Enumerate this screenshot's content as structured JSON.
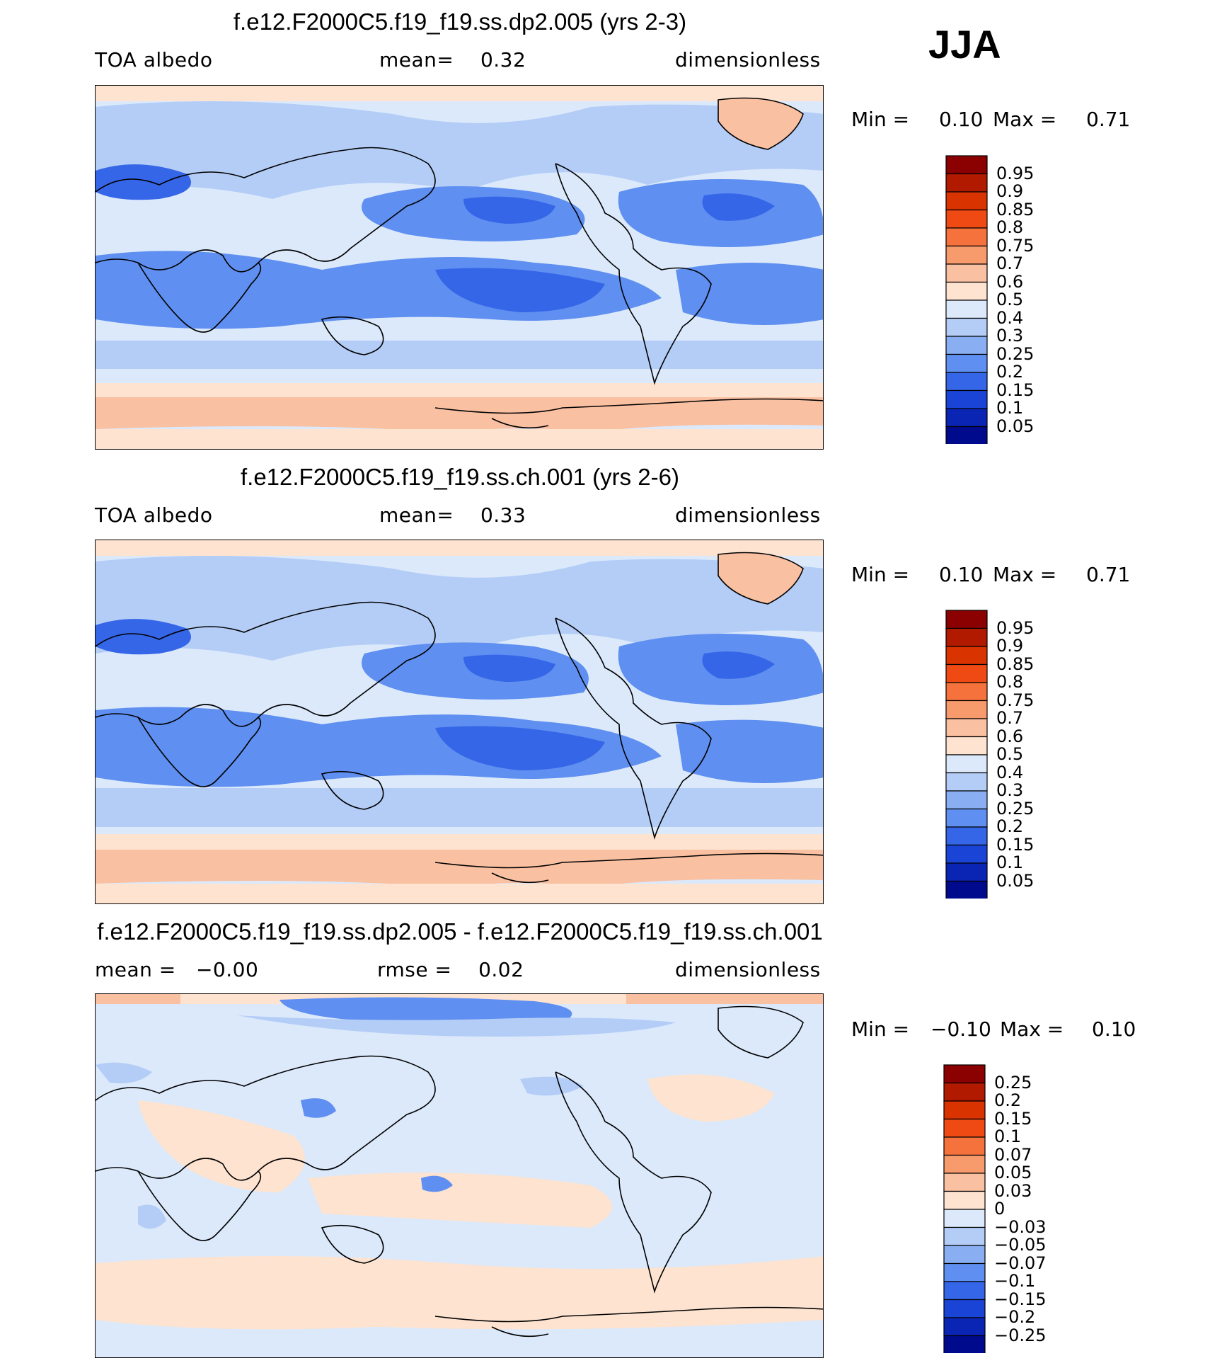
{
  "season": "JJA",
  "panels": [
    {
      "title": "f.e12.F2000C5.f19_f19.ss.dp2.005 (yrs 2-3)",
      "left_label": "TOA albedo",
      "center_label": "mean=    0.32",
      "right_label": "dimensionless",
      "min_label": "Min =",
      "min_value": "0.10",
      "max_label": "Max =",
      "max_value": "0.71",
      "colorbar_labels": [
        "0.95",
        "0.9",
        "0.85",
        "0.8",
        "0.75",
        "0.7",
        "0.6",
        "0.5",
        "0.4",
        "0.3",
        "0.25",
        "0.2",
        "0.15",
        "0.1",
        "0.05"
      ]
    },
    {
      "title": "f.e12.F2000C5.f19_f19.ss.ch.001 (yrs 2-6)",
      "left_label": "TOA albedo",
      "center_label": "mean=    0.33",
      "right_label": "dimensionless",
      "min_label": "Min =",
      "min_value": "0.10",
      "max_label": "Max =",
      "max_value": "0.71",
      "colorbar_labels": [
        "0.95",
        "0.9",
        "0.85",
        "0.8",
        "0.75",
        "0.7",
        "0.6",
        "0.5",
        "0.4",
        "0.3",
        "0.25",
        "0.2",
        "0.15",
        "0.1",
        "0.05"
      ]
    },
    {
      "title": "f.e12.F2000C5.f19_f19.ss.dp2.005 - f.e12.F2000C5.f19_f19.ss.ch.001",
      "left_label": "mean =   −0.00",
      "center_label": "rmse =    0.02",
      "right_label": "dimensionless",
      "min_label": "Min =",
      "min_value": "−0.10",
      "max_label": "Max =",
      "max_value": "0.10",
      "colorbar_labels": [
        "0.25",
        "0.2",
        "0.15",
        "0.1",
        "0.07",
        "0.05",
        "0.03",
        "0",
        "−0.03",
        "−0.05",
        "−0.07",
        "−0.1",
        "−0.15",
        "−0.2",
        "−0.25"
      ]
    }
  ],
  "colors": {
    "colorbar": [
      "#8b0000",
      "#b21a00",
      "#d93300",
      "#f04a14",
      "#f5723c",
      "#f79a6c",
      "#f9c0a2",
      "#fde3d0",
      "#dbe9fb",
      "#b4cdf7",
      "#89aff2",
      "#5f8ff0",
      "#3566e8",
      "#1a44d6",
      "#0a24b4",
      "#000a8c"
    ],
    "ocean_light": "#dbe9fb",
    "land_mid": "#b4cdf7",
    "cloud_low": "#3566e8",
    "cloud_mid": "#5f8ff0",
    "ice": "#f9c0a2",
    "ice_pale": "#fde3d0",
    "coast": "#000000"
  }
}
